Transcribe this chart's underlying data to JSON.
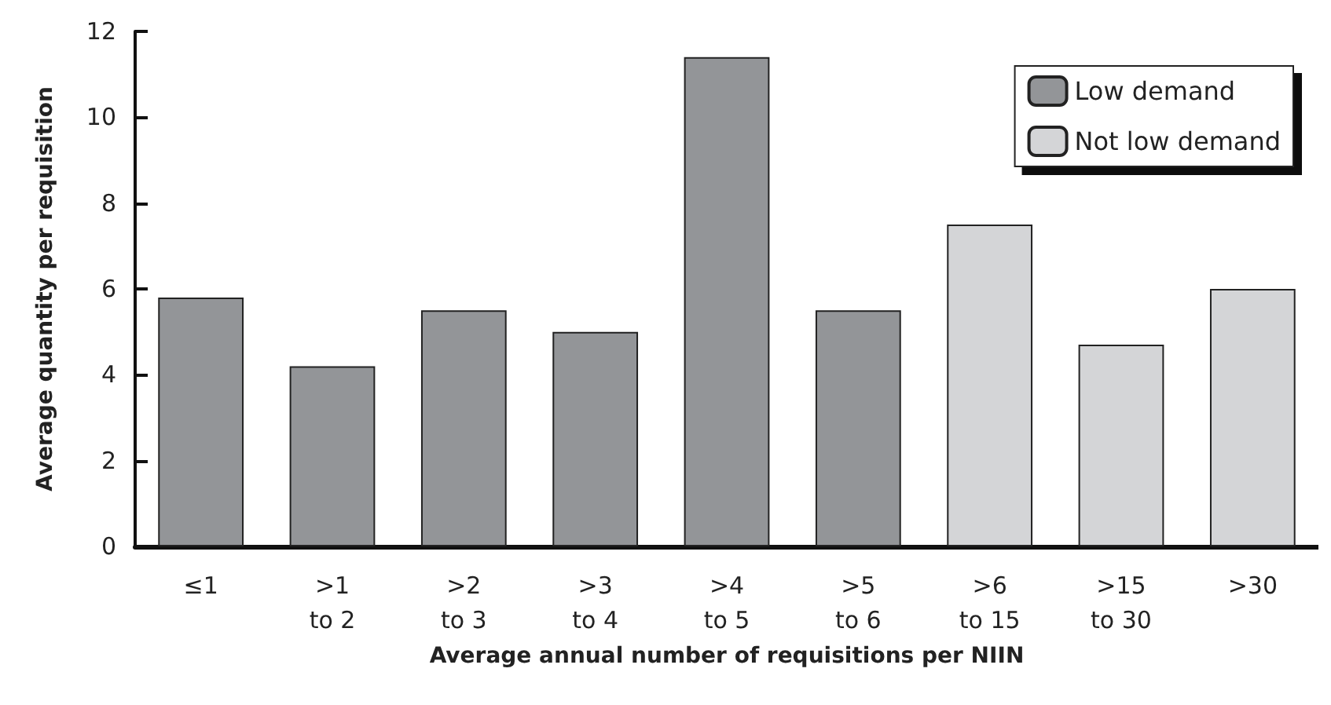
{
  "chart_data": {
    "type": "bar",
    "stacked": true,
    "xlabel": "Average annual number of requisitions per NIIN",
    "ylabel": "Average quantity per requisition",
    "categories": [
      "≤1",
      ">1\nto 2",
      ">2\nto 3",
      ">3\nto 4",
      ">4\nto 5",
      ">5\nto 6",
      ">6\nto 15",
      ">15\nto 30",
      ">30"
    ],
    "series": [
      {
        "name": "Low demand",
        "color": "#939598",
        "values": [
          5.8,
          4.2,
          5.5,
          5.0,
          11.4,
          5.5,
          null,
          null,
          null
        ]
      },
      {
        "name": "Not low demand",
        "color": "#d4d5d7",
        "values": [
          null,
          null,
          null,
          null,
          null,
          null,
          7.5,
          4.7,
          6.0
        ]
      }
    ],
    "ylim": [
      0,
      12
    ],
    "yticks": [
      0,
      2,
      4,
      6,
      8,
      10,
      12
    ],
    "grid": false,
    "legend": "top right"
  }
}
